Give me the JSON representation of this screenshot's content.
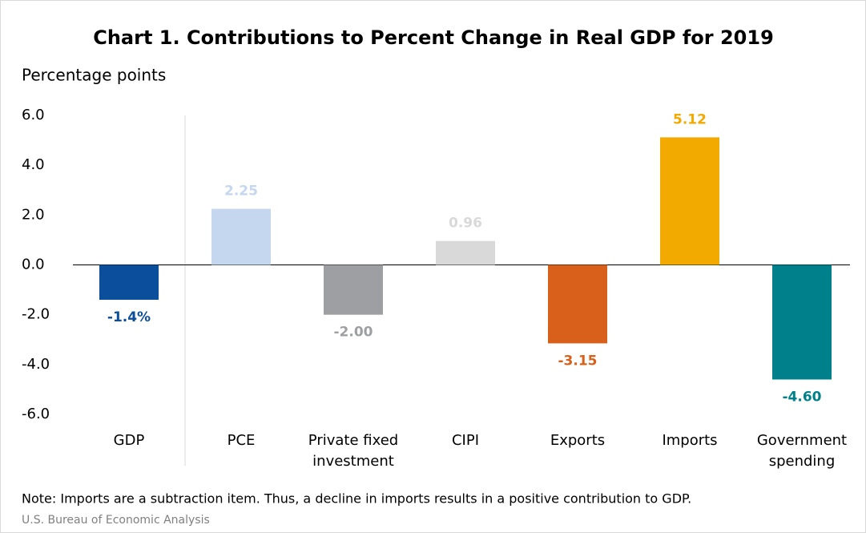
{
  "chart_data": {
    "type": "bar",
    "title": "Chart 1. Contributions to Percent Change in Real GDP for 2019",
    "y_label": "Percentage points",
    "categories": [
      "GDP",
      "PCE",
      "Private fixed investment",
      "CIPI",
      "Exports",
      "Imports",
      "Government spending"
    ],
    "values": [
      -1.4,
      2.25,
      -2.0,
      0.96,
      -3.15,
      5.12,
      -4.6
    ],
    "value_labels": [
      "-1.4%",
      "2.25",
      "-2.00",
      "0.96",
      "-3.15",
      "5.12",
      "-4.60"
    ],
    "colors": [
      "#0b4f9c",
      "#c5d7ef",
      "#9d9fa2",
      "#d9d9d9",
      "#d9601a",
      "#f2a900",
      "#00808a"
    ],
    "ylim": [
      -6,
      6
    ],
    "yticks": [
      {
        "value": -6,
        "label": "-6.0"
      },
      {
        "value": -4,
        "label": "-4.0"
      },
      {
        "value": -2,
        "label": "-2.0"
      },
      {
        "value": 0,
        "label": "0.0"
      },
      {
        "value": 2,
        "label": "2.0"
      },
      {
        "value": 4,
        "label": "4.0"
      },
      {
        "value": 6,
        "label": "6.0"
      }
    ],
    "note": "Note: Imports are a subtraction item. Thus, a decline in imports results in a positive contribution to GDP.",
    "source": "U.S. Bureau of Economic Analysis"
  }
}
